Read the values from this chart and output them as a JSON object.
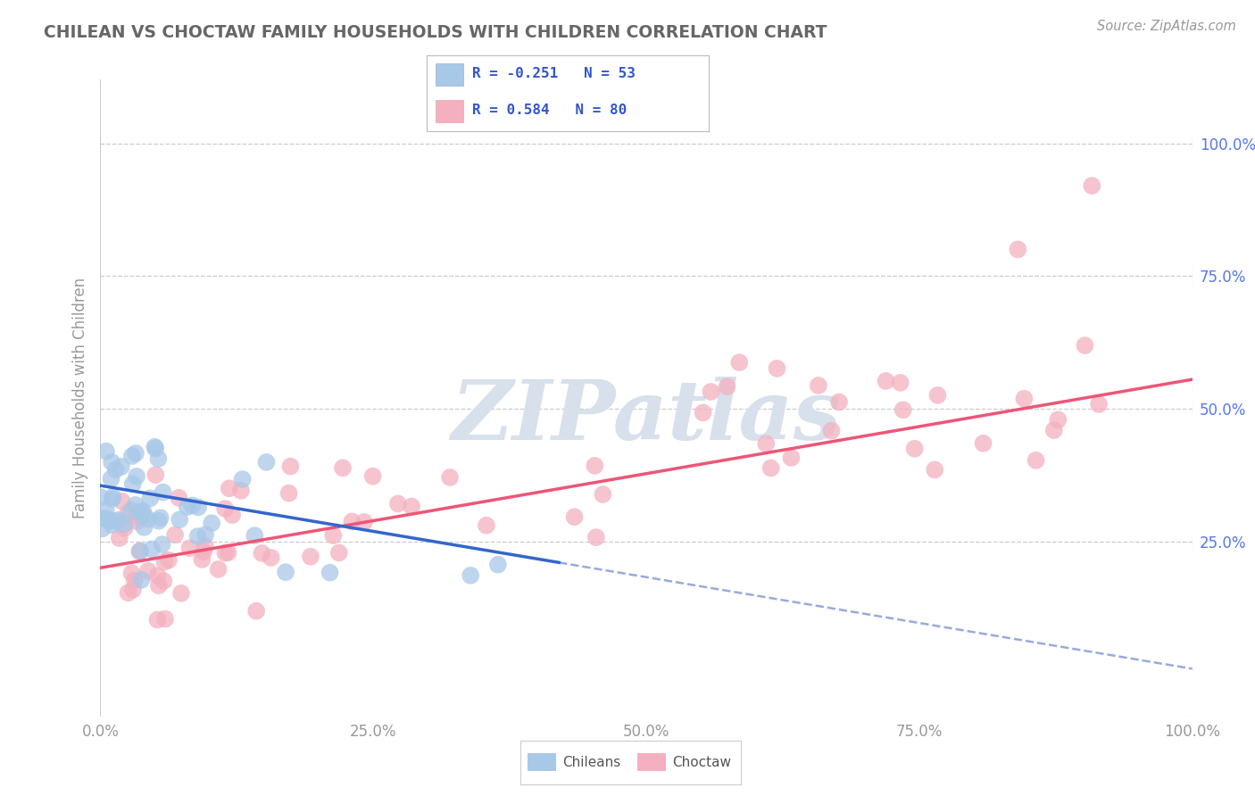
{
  "title": "CHILEAN VS CHOCTAW FAMILY HOUSEHOLDS WITH CHILDREN CORRELATION CHART",
  "source": "Source: ZipAtlas.com",
  "ylabel": "Family Households with Children",
  "xlim": [
    0.0,
    1.0
  ],
  "ylim": [
    -0.08,
    1.12
  ],
  "xticks": [
    0.0,
    0.25,
    0.5,
    0.75,
    1.0
  ],
  "xticklabels": [
    "0.0%",
    "25.0%",
    "50.0%",
    "75.0%",
    "100.0%"
  ],
  "yticks": [
    0.25,
    0.5,
    0.75,
    1.0
  ],
  "yticklabels": [
    "25.0%",
    "50.0%",
    "75.0%",
    "100.0%"
  ],
  "chilean_color": "#A8C8E8",
  "choctaw_color": "#F4B0C0",
  "chilean_line_color": "#3366CC",
  "choctaw_line_color": "#EE5577",
  "chilean_dash_color": "#99AADD",
  "watermark_color": "#D8E0EC",
  "legend_r_chilean": "R = -0.251",
  "legend_n_chilean": "N = 53",
  "legend_r_choctaw": "R = 0.584",
  "legend_n_choctaw": "N = 80",
  "chilean_r": -0.251,
  "choctaw_r": 0.584,
  "background_color": "#ffffff",
  "grid_color": "#cccccc",
  "title_color": "#666666",
  "label_color": "#999999",
  "tick_color": "#5577EE",
  "chilean_seed": 12,
  "choctaw_seed": 99,
  "chilean_line_x0": 0.0,
  "chilean_line_y0": 0.355,
  "chilean_line_x1": 0.42,
  "chilean_line_y1": 0.21,
  "choctaw_line_x0": 0.0,
  "choctaw_line_x1": 1.0,
  "choctaw_line_y0": 0.2,
  "choctaw_line_y1": 0.555
}
